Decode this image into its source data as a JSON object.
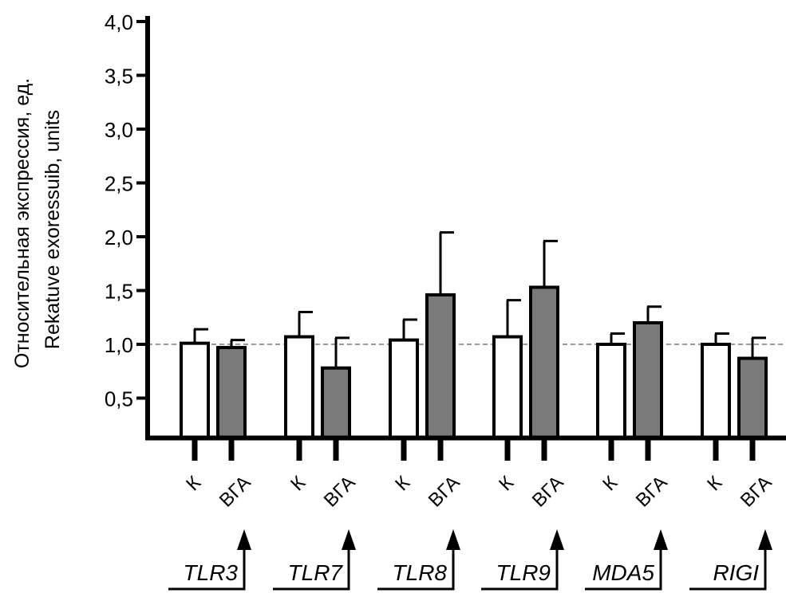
{
  "chart_data": {
    "type": "bar",
    "ylabel_ru": "Относительная экспрессия, ед.",
    "ylabel_en": "Rekatuve exoressuib, units",
    "ylim": [
      0.13,
      4.0
    ],
    "yticks": [
      0.5,
      1.0,
      1.5,
      2.0,
      2.5,
      3.0,
      3.5,
      4.0
    ],
    "ytick_labels": [
      "0,5",
      "1,0",
      "1,5",
      "2,0",
      "2,5",
      "3,0",
      "3,5",
      "4,0"
    ],
    "reference_line": 1.0,
    "groups": [
      "TLR3",
      "TLR7",
      "TLR8",
      "TLR9",
      "MDA5",
      "RIGI"
    ],
    "series": [
      {
        "name": "К",
        "color": "#ffffff",
        "values": [
          1.01,
          1.07,
          1.04,
          1.07,
          1.0,
          1.0
        ],
        "error_upper": [
          1.14,
          1.3,
          1.23,
          1.41,
          1.1,
          1.1
        ]
      },
      {
        "name": "ВГА",
        "color": "#7a7a7a",
        "values": [
          0.97,
          0.78,
          1.46,
          1.53,
          1.2,
          0.87
        ],
        "error_upper": [
          1.04,
          1.06,
          2.04,
          1.96,
          1.35,
          1.06
        ]
      }
    ]
  }
}
